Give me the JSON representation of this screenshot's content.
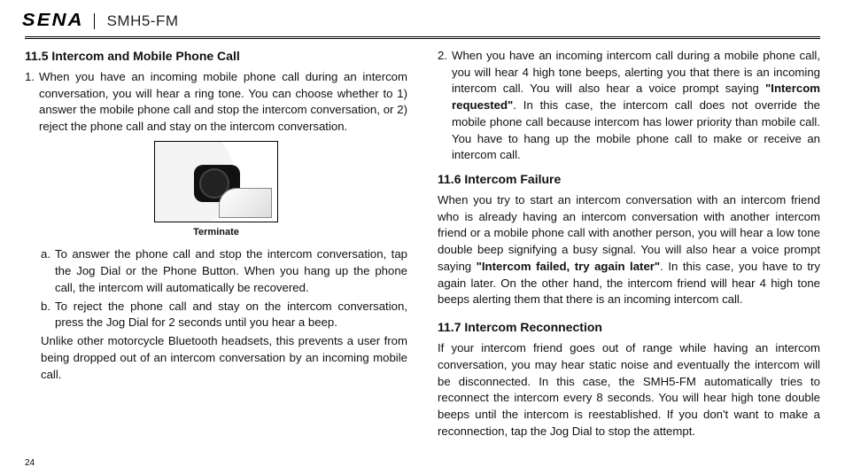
{
  "header": {
    "brand": "SENA",
    "model": "SMH5-FM"
  },
  "page_number": "24",
  "left": {
    "section_11_5_title": "11.5  Intercom and Mobile Phone Call",
    "item1_num": "1.",
    "item1_text": "When you have an incoming mobile phone call during an intercom conversation, you will hear a ring tone. You can choose whether to 1) answer the mobile phone call and stop the intercom conversation, or 2) reject the phone call and stay on the intercom conversation.",
    "figure_caption": "Terminate",
    "sub_a_num": "a.",
    "sub_a_text": "To answer the phone call and stop the intercom conversation, tap the Jog Dial or the Phone Button. When you hang up the phone call, the intercom will automatically be recovered.",
    "sub_b_num": "b.",
    "sub_b_text": "To reject the phone call and stay on the intercom conversation, press the Jog Dial for 2 seconds until you hear a beep.",
    "tail_para": "Unlike other motorcycle Bluetooth headsets, this prevents a user from being dropped out of an intercom conversation by an incoming mobile call."
  },
  "right": {
    "item2_num": "2.",
    "item2_pre": "When you have an incoming intercom call during a mobile phone call, you will hear 4 high tone beeps, alerting you that there is an incoming intercom call. You will also hear a voice prompt saying ",
    "item2_bold": "\"Intercom requested\"",
    "item2_post": ". In this case, the intercom call does not override the mobile phone call because intercom has lower priority than mobile call. You have to hang up the mobile phone call to make or receive an intercom call.",
    "section_11_6_title": "11.6  Intercom Failure",
    "p11_6_pre": "When you try to start an intercom conversation with an intercom friend who is already having an intercom conversation with another intercom friend or a mobile phone call with another person, you will hear a low tone double beep signifying a busy signal. You will also hear a voice prompt saying ",
    "p11_6_bold": "\"Intercom failed, try again later\"",
    "p11_6_post": ". In this case, you have to try again later. On the other hand, the intercom friend will hear 4 high tone beeps alerting them that there is an incoming intercom call.",
    "section_11_7_title": "11.7  Intercom Reconnection",
    "p11_7": "If your intercom friend goes out of range while having an intercom conversation, you may hear static noise and eventually the intercom will be disconnected. In this case, the SMH5-FM automatically tries to reconnect the intercom every 8 seconds. You will hear high tone double beeps until the intercom is reestablished. If you don't want to make a reconnection, tap the Jog Dial to stop the attempt."
  }
}
